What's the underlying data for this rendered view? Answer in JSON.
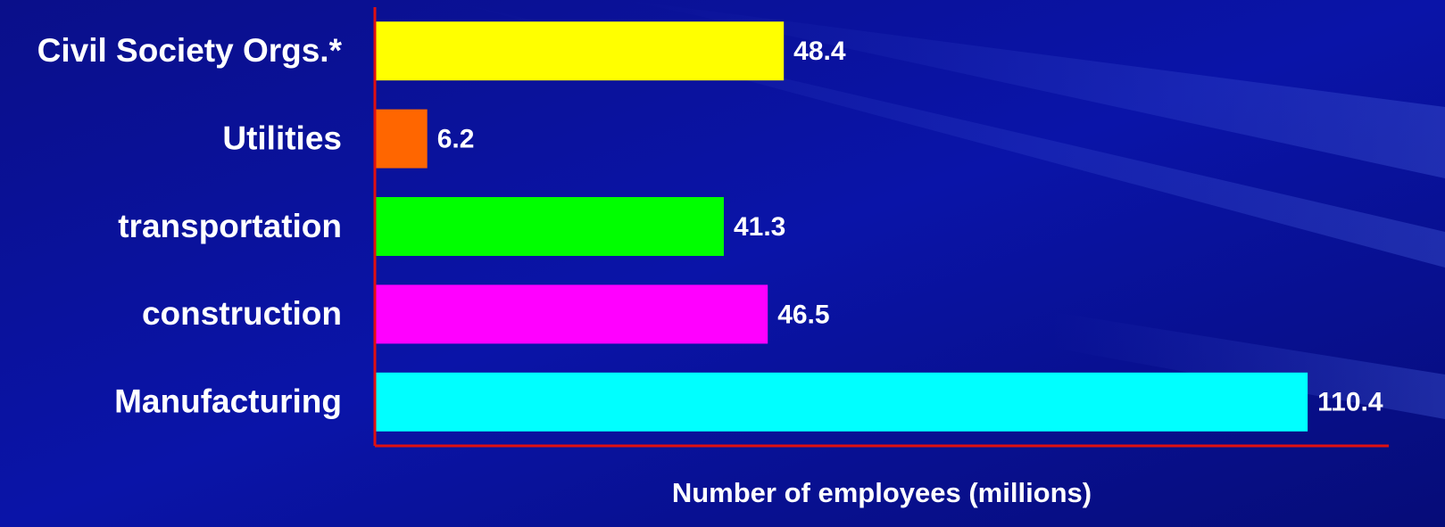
{
  "chart_data": {
    "type": "bar",
    "orientation": "horizontal",
    "categories": [
      "Civil Society Orgs.*",
      "Utilities",
      "transportation",
      "construction",
      "Manufacturing"
    ],
    "values": [
      48.4,
      6.2,
      41.3,
      46.5,
      110.4
    ],
    "colors": [
      "#ffff00",
      "#ff6600",
      "#00ff00",
      "#ff00ff",
      "#00ffff"
    ],
    "xlabel": "Number of employees (millions)",
    "xlim": [
      0,
      120
    ],
    "axis_color": "#e01010"
  }
}
